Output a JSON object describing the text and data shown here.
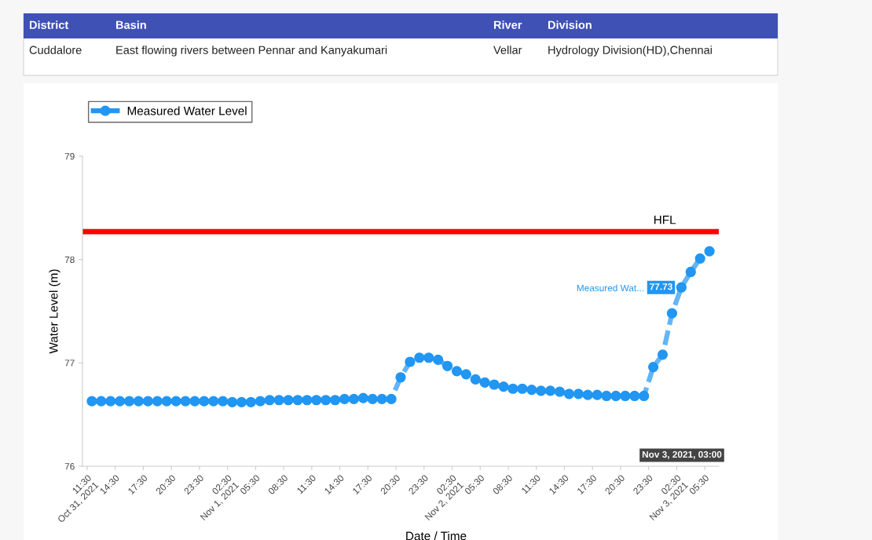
{
  "chart_data": {
    "type": "line",
    "annotations": [
      "District",
      "Basin",
      "River",
      "Division",
      "Cuddalore",
      "East flowing rivers between Pennar and Kanyakumari",
      "Vellar",
      "Hydrology Division(HD),Chennai",
      "Measured Wat...",
      "Nov 3, 2021, 03:00",
      {
        "text": "77.73",
        "x": "2021-11-03T03:00",
        "y": 77.73
      }
    ],
    "xlabel": "Date / Time",
    "ylabel": "Water Level (m)",
    "x": [
      "2021-10-31T12:00",
      "2021-10-31T13:00",
      "2021-10-31T14:00",
      "2021-10-31T15:00",
      "2021-10-31T16:00",
      "2021-10-31T17:00",
      "2021-10-31T18:00",
      "2021-10-31T19:00",
      "2021-10-31T20:00",
      "2021-10-31T21:00",
      "2021-10-31T22:00",
      "2021-10-31T23:00",
      "2021-11-01T00:00",
      "2021-11-01T01:00",
      "2021-11-01T02:00",
      "2021-11-01T03:00",
      "2021-11-01T04:00",
      "2021-11-01T05:00",
      "2021-11-01T06:00",
      "2021-11-01T07:00",
      "2021-11-01T08:00",
      "2021-11-01T09:00",
      "2021-11-01T10:00",
      "2021-11-01T11:00",
      "2021-11-01T12:00",
      "2021-11-01T13:00",
      "2021-11-01T14:00",
      "2021-11-01T15:00",
      "2021-11-01T16:00",
      "2021-11-01T17:00",
      "2021-11-01T18:00",
      "2021-11-01T19:00",
      "2021-11-01T20:00",
      "2021-11-01T21:00",
      "2021-11-01T22:00",
      "2021-11-01T23:00",
      "2021-11-02T00:00",
      "2021-11-02T01:00",
      "2021-11-02T02:00",
      "2021-11-02T03:00",
      "2021-11-02T04:00",
      "2021-11-02T05:00",
      "2021-11-02T06:00",
      "2021-11-02T07:00",
      "2021-11-02T08:00",
      "2021-11-02T09:00",
      "2021-11-02T10:00",
      "2021-11-02T11:00",
      "2021-11-02T12:00",
      "2021-11-02T13:00",
      "2021-11-02T14:00",
      "2021-11-02T15:00",
      "2021-11-02T16:00",
      "2021-11-02T17:00",
      "2021-11-02T18:00",
      "2021-11-02T19:00",
      "2021-11-02T20:00",
      "2021-11-02T21:00",
      "2021-11-02T22:00",
      "2021-11-02T23:00",
      "2021-11-03T00:00",
      "2021-11-03T01:00",
      "2021-11-03T02:00",
      "2021-11-03T03:00",
      "2021-11-03T04:00",
      "2021-11-03T05:00",
      "2021-11-03T06:00"
    ],
    "series": [
      {
        "name": "Measured Water Level",
        "color": "#2196f3",
        "values": [
          76.63,
          76.63,
          76.63,
          76.63,
          76.63,
          76.63,
          76.63,
          76.63,
          76.63,
          76.63,
          76.63,
          76.63,
          76.63,
          76.63,
          76.63,
          76.62,
          76.62,
          76.62,
          76.63,
          76.64,
          76.64,
          76.64,
          76.64,
          76.64,
          76.64,
          76.64,
          76.64,
          76.65,
          76.65,
          76.66,
          76.65,
          76.65,
          76.65,
          76.86,
          77.01,
          77.05,
          77.05,
          77.03,
          76.97,
          76.92,
          76.89,
          76.84,
          76.81,
          76.79,
          76.77,
          76.75,
          76.75,
          76.74,
          76.73,
          76.73,
          76.72,
          76.7,
          76.7,
          76.69,
          76.69,
          76.68,
          76.68,
          76.68,
          76.68,
          76.68,
          76.96,
          77.08,
          77.48,
          77.73,
          77.88,
          78.01,
          78.08
        ]
      }
    ],
    "marker": "circle",
    "line_style": "dashed",
    "ref_lines": [
      {
        "axis": "y",
        "value": 78.27,
        "label": "HFL",
        "color": "#ff0000"
      }
    ],
    "xlim": [
      "2021-10-31T11:00",
      "2021-11-03T07:00"
    ],
    "xticks": [
      {
        "value": "2021-10-31T11:30",
        "label": "11:30\nOct 31, 2021"
      },
      {
        "value": "2021-10-31T14:30",
        "label": "14:30"
      },
      {
        "value": "2021-10-31T17:30",
        "label": "17:30"
      },
      {
        "value": "2021-10-31T20:30",
        "label": "20:30"
      },
      {
        "value": "2021-10-31T23:30",
        "label": "23:30"
      },
      {
        "value": "2021-11-01T02:30",
        "label": "02:30\nNov 1, 2021"
      },
      {
        "value": "2021-11-01T05:30",
        "label": "05:30"
      },
      {
        "value": "2021-11-01T08:30",
        "label": "08:30"
      },
      {
        "value": "2021-11-01T11:30",
        "label": "11:30"
      },
      {
        "value": "2021-11-01T14:30",
        "label": "14:30"
      },
      {
        "value": "2021-11-01T17:30",
        "label": "17:30"
      },
      {
        "value": "2021-11-01T20:30",
        "label": "20:30"
      },
      {
        "value": "2021-11-01T23:30",
        "label": "23:30"
      },
      {
        "value": "2021-11-02T02:30",
        "label": "02:30\nNov 2, 2021"
      },
      {
        "value": "2021-11-02T05:30",
        "label": "05:30"
      },
      {
        "value": "2021-11-02T08:30",
        "label": "08:30"
      },
      {
        "value": "2021-11-02T11:30",
        "label": "11:30"
      },
      {
        "value": "2021-11-02T14:30",
        "label": "14:30"
      },
      {
        "value": "2021-11-02T17:30",
        "label": "17:30"
      },
      {
        "value": "2021-11-02T20:30",
        "label": "20:30"
      },
      {
        "value": "2021-11-02T23:30",
        "label": "23:30"
      },
      {
        "value": "2021-11-03T02:30",
        "label": "02:30\nNov 3, 2021"
      },
      {
        "value": "2021-11-03T05:30",
        "label": "05:30"
      }
    ],
    "ylim": [
      76,
      79
    ],
    "yticks": [
      76,
      77,
      78,
      79
    ],
    "grid": false,
    "legend": "top left"
  }
}
